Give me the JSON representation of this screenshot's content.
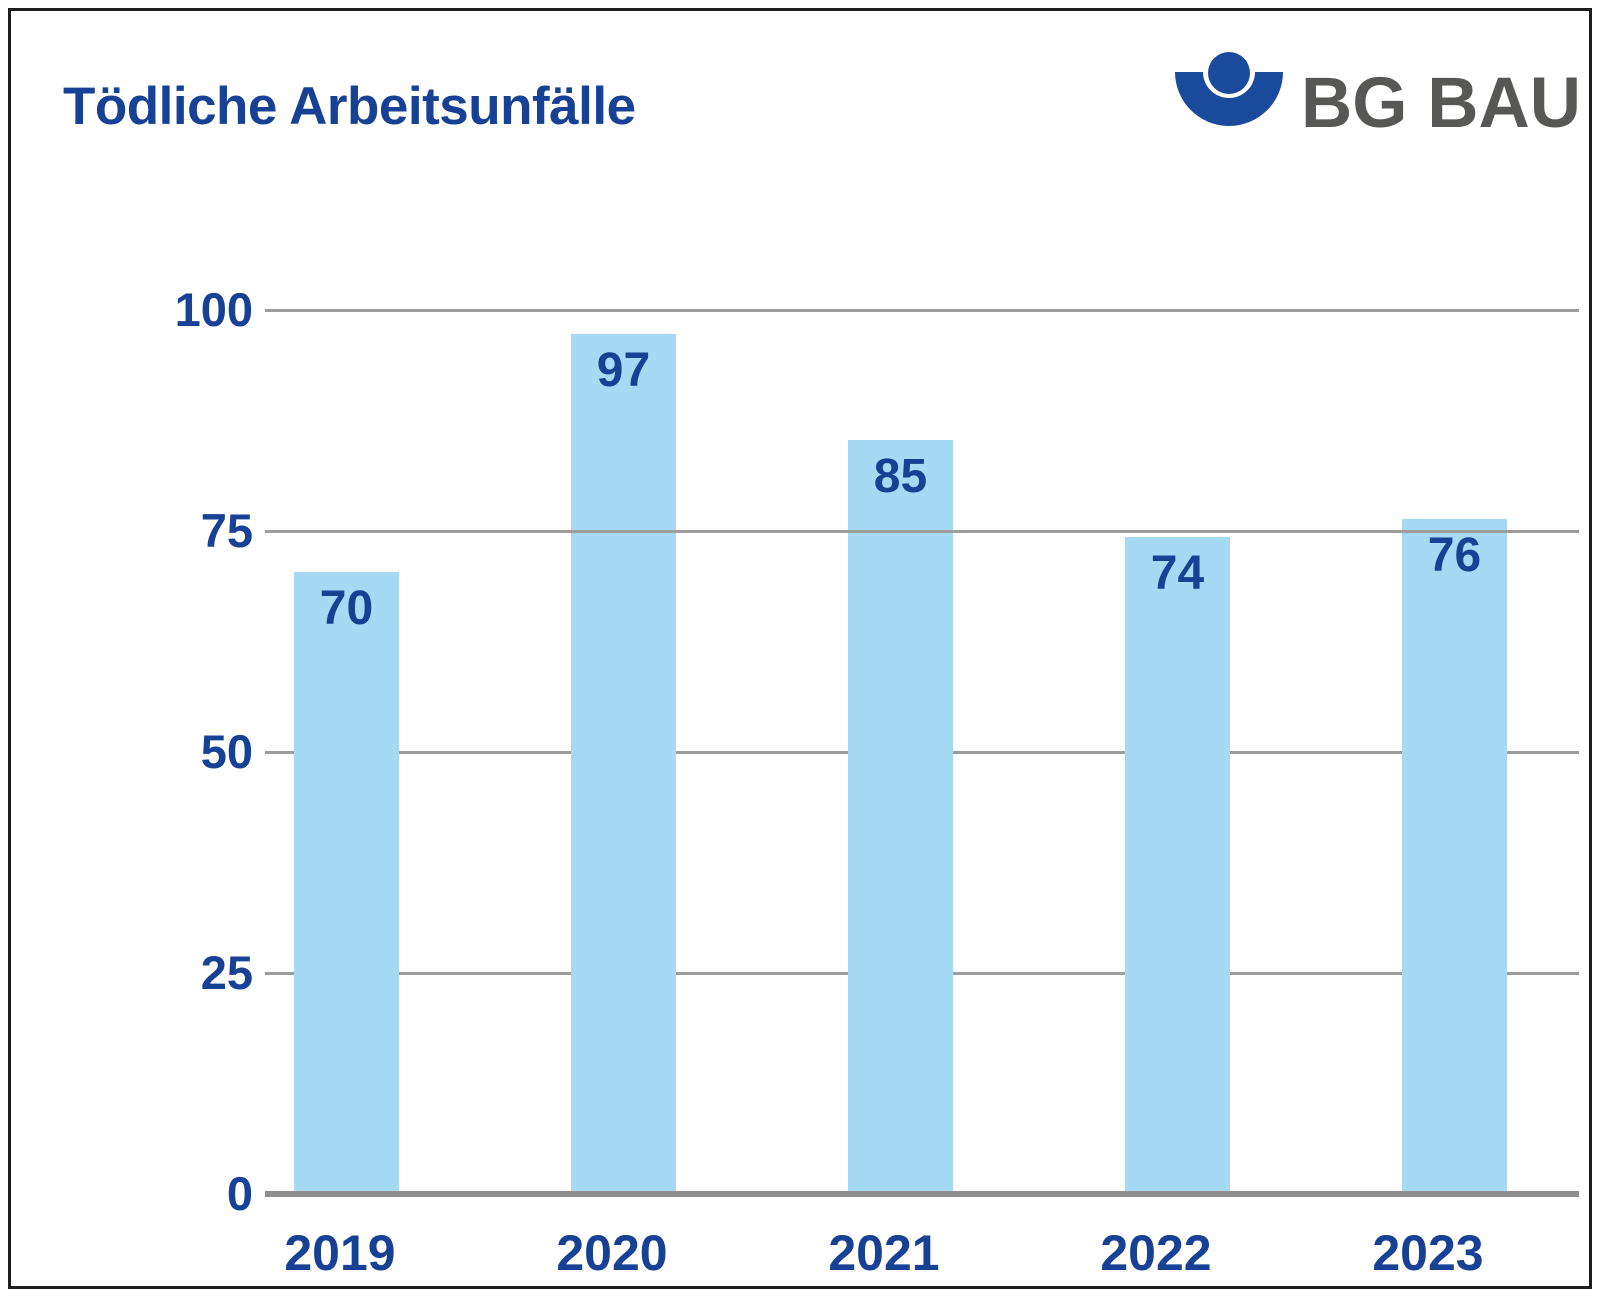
{
  "title": "Tödliche Arbeitsunfälle",
  "logo": {
    "text": "BG BAU",
    "symbol": "person-in-protecting-hand-icon"
  },
  "colors": {
    "text_blue": "#164194",
    "logo_blue": "#1a4a9b",
    "logo_text_gray": "#575756",
    "bar_fill": "#a5d9f4",
    "gridline_gray": "#9c9c9b",
    "baseline_gray": "#8f8f8f",
    "frame_border": "#1d1d1b"
  },
  "chart_data": {
    "type": "bar",
    "title": "Tödliche Arbeitsunfälle",
    "categories": [
      "2019",
      "2020",
      "2021",
      "2022",
      "2023"
    ],
    "values": [
      70,
      97,
      85,
      74,
      76
    ],
    "y_ticks": [
      0,
      25,
      50,
      75,
      100
    ],
    "ylim": [
      0,
      100
    ],
    "xlabel": "",
    "ylabel": "",
    "grid": true,
    "legend": false,
    "value_labels_position": "inside-top",
    "gridlines_above_bars": [
      75
    ]
  }
}
